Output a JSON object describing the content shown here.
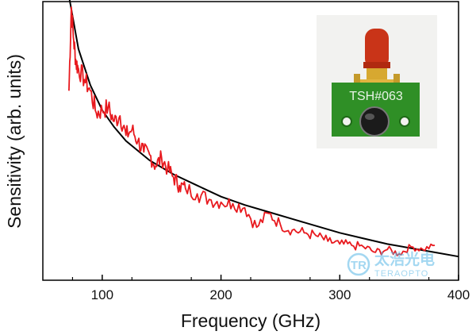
{
  "chart_data": {
    "type": "line",
    "title": "",
    "xlabel": "Frequency (GHz)",
    "ylabel": "Sensitivity (arb. units)",
    "xlim": [
      50,
      400
    ],
    "ylim": [
      0,
      1
    ],
    "x_ticks": [
      100,
      200,
      300,
      400
    ],
    "y_ticks": [],
    "grid": false,
    "legend": "none",
    "series": [
      {
        "color": "#e8191e",
        "style": "noisy-measured",
        "x": [
          72,
          74,
          76,
          78,
          80,
          85,
          90,
          95,
          100,
          105,
          110,
          115,
          120,
          125,
          130,
          135,
          140,
          145,
          150,
          155,
          160,
          165,
          170,
          180,
          190,
          200,
          210,
          220,
          230,
          240,
          250,
          260,
          270,
          280,
          290,
          300,
          310,
          320,
          330,
          340,
          350,
          360,
          370,
          380
        ],
        "y": [
          0.68,
          0.98,
          0.86,
          0.78,
          0.76,
          0.72,
          0.68,
          0.6,
          0.61,
          0.62,
          0.57,
          0.59,
          0.52,
          0.54,
          0.5,
          0.46,
          0.45,
          0.41,
          0.44,
          0.4,
          0.37,
          0.34,
          0.33,
          0.31,
          0.29,
          0.28,
          0.275,
          0.26,
          0.19,
          0.24,
          0.2,
          0.18,
          0.17,
          0.16,
          0.14,
          0.13,
          0.125,
          0.12,
          0.1,
          0.11,
          0.095,
          0.12,
          0.11,
          0.125
        ]
      },
      {
        "color": "#000000",
        "style": "fit",
        "x": [
          72,
          80,
          90,
          100,
          110,
          120,
          140,
          160,
          180,
          200,
          220,
          240,
          260,
          280,
          300,
          320,
          340,
          360,
          380,
          400
        ],
        "y": [
          1.02,
          0.83,
          0.7,
          0.61,
          0.55,
          0.5,
          0.43,
          0.38,
          0.34,
          0.3,
          0.27,
          0.245,
          0.22,
          0.195,
          0.17,
          0.15,
          0.13,
          0.115,
          0.1,
          0.085
        ]
      }
    ]
  },
  "inset": {
    "board_label": "TSH#063"
  },
  "watermark": {
    "logo_text": "TR",
    "cn_text": "太浩光电",
    "en_text": "TERAOPTO"
  }
}
